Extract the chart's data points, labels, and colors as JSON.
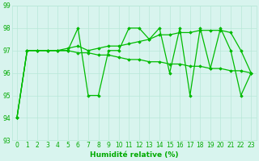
{
  "series": [
    {
      "x": [
        0,
        1,
        2,
        3,
        4,
        5,
        6,
        7,
        8,
        9,
        10,
        11,
        12,
        13,
        14,
        15,
        16,
        17,
        18,
        19,
        20,
        21,
        22,
        23
      ],
      "y": [
        94,
        97,
        97,
        97,
        97,
        97,
        98,
        95,
        95,
        97,
        97,
        98,
        98,
        97.5,
        98,
        96,
        98,
        95,
        98,
        96.2,
        98,
        97,
        95,
        96
      ],
      "color": "#00bb00",
      "linewidth": 0.9,
      "marker": "D",
      "markersize": 1.8
    },
    {
      "x": [
        0,
        1,
        2,
        3,
        4,
        5,
        6,
        7,
        8,
        9,
        10,
        11,
        12,
        13,
        14,
        15,
        16,
        17,
        18,
        19,
        20,
        21,
        22,
        23
      ],
      "y": [
        94,
        97,
        97,
        97,
        97,
        97.1,
        97.2,
        97.0,
        97.1,
        97.2,
        97.2,
        97.3,
        97.4,
        97.5,
        97.7,
        97.7,
        97.8,
        97.8,
        97.9,
        97.9,
        97.9,
        97.8,
        97.0,
        96.0
      ],
      "color": "#00bb00",
      "linewidth": 0.9,
      "marker": "D",
      "markersize": 1.8
    },
    {
      "x": [
        0,
        1,
        2,
        3,
        4,
        5,
        6,
        7,
        8,
        9,
        10,
        11,
        12,
        13,
        14,
        15,
        16,
        17,
        18,
        19,
        20,
        21,
        22,
        23
      ],
      "y": [
        94,
        97,
        97,
        97,
        97,
        97.0,
        96.9,
        96.9,
        96.8,
        96.8,
        96.7,
        96.6,
        96.6,
        96.5,
        96.5,
        96.4,
        96.4,
        96.3,
        96.3,
        96.2,
        96.2,
        96.1,
        96.1,
        96.0
      ],
      "color": "#00bb00",
      "linewidth": 0.9,
      "marker": "D",
      "markersize": 1.8
    }
  ],
  "ylim": [
    93,
    99
  ],
  "xlim": [
    -0.5,
    23.5
  ],
  "yticks": [
    93,
    94,
    95,
    96,
    97,
    98,
    99
  ],
  "xticks": [
    0,
    1,
    2,
    3,
    4,
    5,
    6,
    7,
    8,
    9,
    10,
    11,
    12,
    13,
    14,
    15,
    16,
    17,
    18,
    19,
    20,
    21,
    22,
    23
  ],
  "xlabel": "Humidité relative (%)",
  "xlabel_color": "#00aa00",
  "xlabel_fontsize": 6.5,
  "tick_fontsize": 5.5,
  "tick_color": "#00aa00",
  "grid_color": "#b8e8d8",
  "background_color": "#d8f4ee",
  "figwidth": 3.2,
  "figheight": 2.0,
  "dpi": 100
}
